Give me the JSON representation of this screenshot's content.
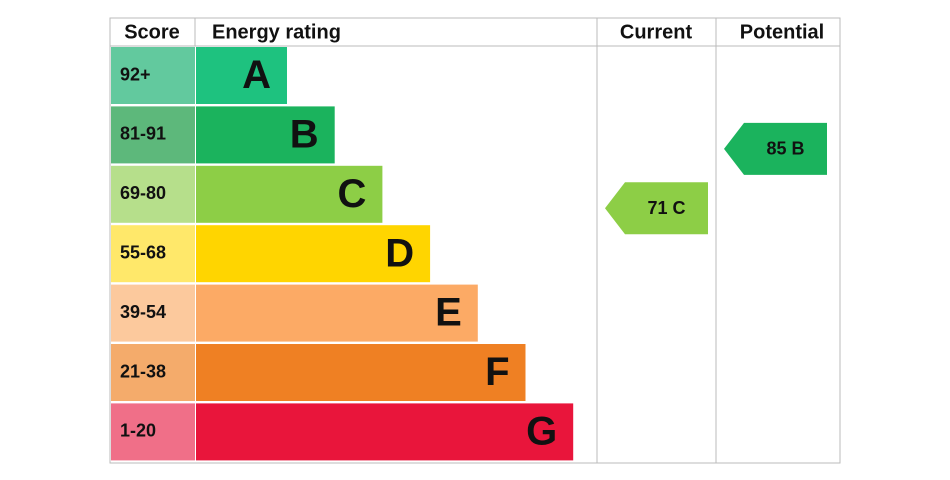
{
  "header": {
    "score": "Score",
    "rating": "Energy rating",
    "current": "Current",
    "potential": "Potential"
  },
  "bands": [
    {
      "range": "92+",
      "letter": "A",
      "color": "#1ec27f",
      "light": "#62c99e"
    },
    {
      "range": "81-91",
      "letter": "B",
      "color": "#1bb35d",
      "light": "#5db87b"
    },
    {
      "range": "69-80",
      "letter": "C",
      "color": "#8dce46",
      "light": "#b6df8b"
    },
    {
      "range": "55-68",
      "letter": "D",
      "color": "#ffd500",
      "light": "#ffe86a"
    },
    {
      "range": "39-54",
      "letter": "E",
      "color": "#fcaa65",
      "light": "#fcc99d"
    },
    {
      "range": "21-38",
      "letter": "F",
      "color": "#ef8023",
      "light": "#f4ab6b"
    },
    {
      "range": "1-20",
      "letter": "G",
      "color": "#e9153b",
      "light": "#f06f88"
    }
  ],
  "current": "71 C",
  "potential": "85 B"
}
